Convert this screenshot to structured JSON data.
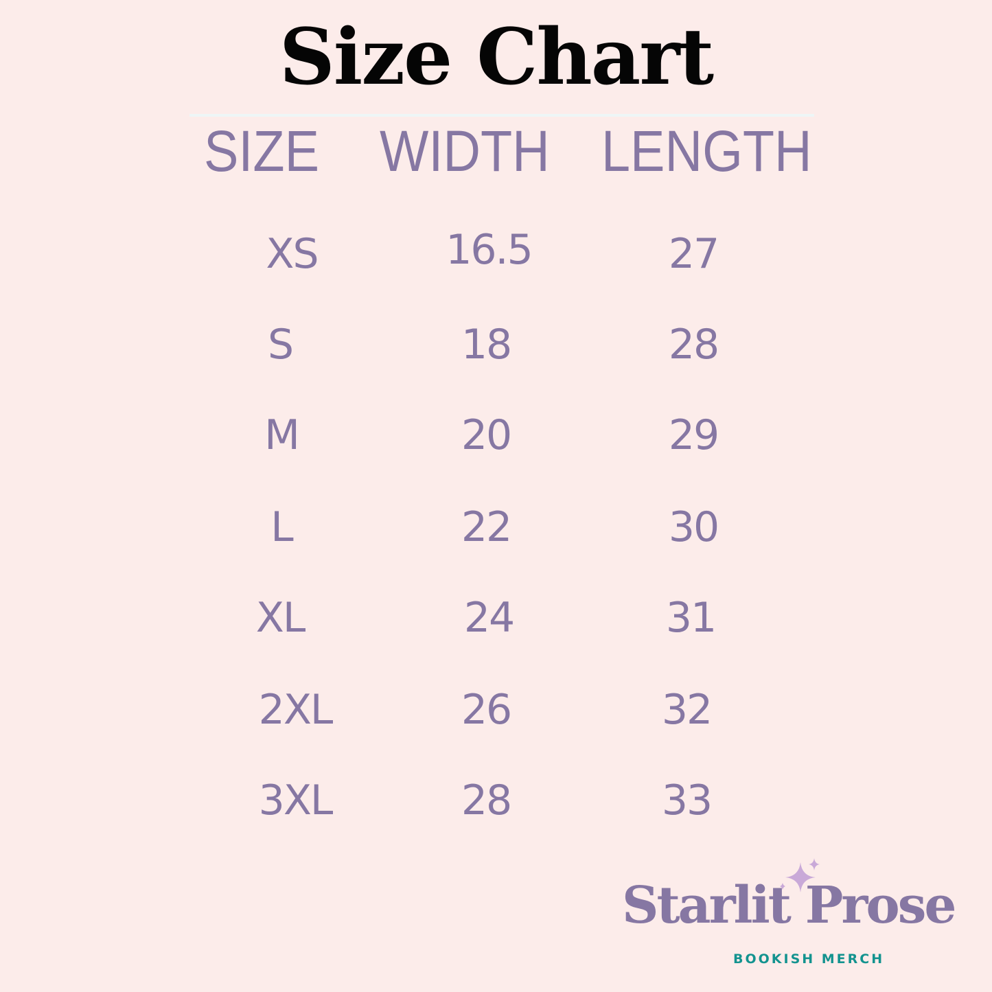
{
  "title": "Size Chart",
  "table": {
    "headers": [
      "SIZE",
      "WIDTH",
      "LENGTH"
    ],
    "rows": [
      {
        "size": "XS",
        "width": "16.5",
        "length": "27"
      },
      {
        "size": "S",
        "width": "18",
        "length": "28"
      },
      {
        "size": "M",
        "width": "20",
        "length": "29"
      },
      {
        "size": "L",
        "width": "22",
        "length": "30"
      },
      {
        "size": "XL",
        "width": "24",
        "length": "31"
      },
      {
        "size": "2XL",
        "width": "26",
        "length": "32"
      },
      {
        "size": "3XL",
        "width": "28",
        "length": "33"
      }
    ]
  },
  "brand": {
    "name": "Starlit Prose",
    "tagline": "BOOKISH MERCH",
    "icon": "sparkle-icon"
  },
  "colors": {
    "background": "#fcecea",
    "text_purple": "#8677a3",
    "title": "#050505",
    "tagline_teal": "#13938f",
    "sparkle": "#c9a9d8"
  }
}
